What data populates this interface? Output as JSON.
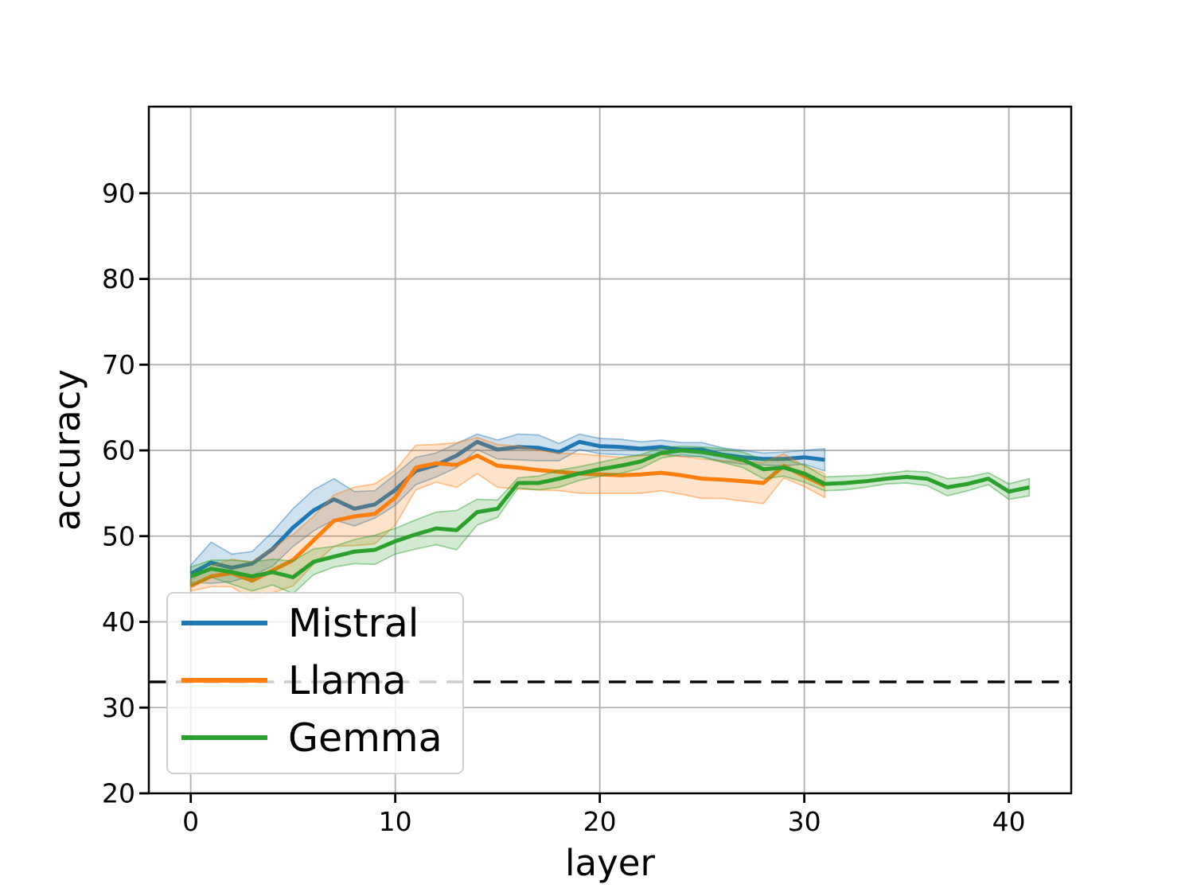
{
  "figure": {
    "background": "#ffffff"
  },
  "chart_data": {
    "type": "line",
    "title": "",
    "xlabel": "layer",
    "ylabel": "accuracy",
    "xlim": [
      -2.05,
      43.05
    ],
    "ylim": [
      20,
      100.1
    ],
    "xticks": [
      0,
      10,
      20,
      30,
      40
    ],
    "yticks": [
      20,
      30,
      40,
      50,
      60,
      70,
      80,
      90
    ],
    "grid": true,
    "grid_color": "#b0b0b0",
    "axis_color": "#000000",
    "baseline": {
      "y": 33,
      "color": "#000000",
      "style": "dashed"
    },
    "legend": {
      "position": "lower left",
      "frame_fill": "#ffffff",
      "frame_alpha": 0.8,
      "frame_border": "#cccccc",
      "entries": [
        "Mistral",
        "Llama",
        "Gemma"
      ]
    },
    "series": [
      {
        "name": "Mistral",
        "color": "#1f77b4",
        "layers": [
          0,
          1,
          2,
          3,
          4,
          5,
          6,
          7,
          8,
          9,
          10,
          11,
          12,
          13,
          14,
          15,
          16,
          17,
          18,
          19,
          20,
          21,
          22,
          23,
          24,
          25,
          26,
          27,
          28,
          29,
          30,
          31
        ],
        "accuracy": [
          45.6,
          46.9,
          46.3,
          46.8,
          48.5,
          51.0,
          53.0,
          54.3,
          53.2,
          53.7,
          55.4,
          57.6,
          58.3,
          59.4,
          61.0,
          60.1,
          60.4,
          60.3,
          59.8,
          61.0,
          60.5,
          60.4,
          60.2,
          60.4,
          60.1,
          60.1,
          59.5,
          59.2,
          59.0,
          59.0,
          59.2,
          58.9
        ],
        "band_halfwidth": [
          1.0,
          2.4,
          1.6,
          1.4,
          2.0,
          2.2,
          2.4,
          2.4,
          2.0,
          1.6,
          1.8,
          1.6,
          1.4,
          1.4,
          0.9,
          1.1,
          1.5,
          1.5,
          1.0,
          0.9,
          0.9,
          0.9,
          0.8,
          0.8,
          0.8,
          0.8,
          0.8,
          0.8,
          0.7,
          0.8,
          0.8,
          1.3
        ]
      },
      {
        "name": "Llama",
        "color": "#ff7f0e",
        "layers": [
          0,
          1,
          2,
          3,
          4,
          5,
          6,
          7,
          8,
          9,
          10,
          11,
          12,
          13,
          14,
          15,
          16,
          17,
          18,
          19,
          20,
          21,
          22,
          23,
          24,
          25,
          26,
          27,
          28,
          29,
          30,
          31
        ],
        "accuracy": [
          44.2,
          45.3,
          45.7,
          44.8,
          46.0,
          47.2,
          49.5,
          51.8,
          52.3,
          52.6,
          54.5,
          58.0,
          58.5,
          58.3,
          59.4,
          58.2,
          58.0,
          57.7,
          57.5,
          57.3,
          57.2,
          57.1,
          57.2,
          57.4,
          57.1,
          56.7,
          56.6,
          56.4,
          56.2,
          58.2,
          57.0,
          55.9
        ],
        "band_halfwidth": [
          0.6,
          1.2,
          1.6,
          2.2,
          2.6,
          3.0,
          2.8,
          3.0,
          3.4,
          3.5,
          3.2,
          2.6,
          2.2,
          2.6,
          2.1,
          2.5,
          2.5,
          2.3,
          2.2,
          2.3,
          2.2,
          2.1,
          2.2,
          2.1,
          2.2,
          2.3,
          2.2,
          2.3,
          2.4,
          1.4,
          1.2,
          1.4
        ]
      },
      {
        "name": "Gemma",
        "color": "#2ca02c",
        "layers": [
          0,
          1,
          2,
          3,
          4,
          5,
          6,
          7,
          8,
          9,
          10,
          11,
          12,
          13,
          14,
          15,
          16,
          17,
          18,
          19,
          20,
          21,
          22,
          23,
          24,
          25,
          26,
          27,
          28,
          29,
          30,
          31,
          32,
          33,
          34,
          35,
          36,
          37,
          38,
          39,
          40,
          41
        ],
        "accuracy": [
          45.3,
          46.2,
          45.8,
          45.3,
          45.8,
          45.2,
          47.0,
          47.6,
          48.2,
          48.4,
          49.4,
          50.2,
          50.9,
          50.7,
          52.8,
          53.2,
          56.2,
          56.2,
          56.7,
          57.3,
          57.8,
          58.2,
          58.7,
          59.7,
          60.0,
          59.8,
          59.4,
          58.9,
          57.8,
          58.0,
          57.3,
          56.1,
          56.2,
          56.4,
          56.7,
          56.9,
          56.7,
          55.7,
          56.1,
          56.7,
          55.2,
          55.7
        ],
        "band_halfwidth": [
          1.1,
          1.0,
          1.4,
          1.7,
          1.5,
          1.9,
          1.5,
          1.2,
          1.4,
          1.7,
          1.5,
          1.7,
          1.9,
          2.3,
          1.5,
          1.0,
          0.6,
          0.8,
          1.0,
          0.8,
          0.8,
          0.9,
          0.8,
          0.6,
          0.5,
          0.6,
          0.8,
          0.9,
          1.1,
          1.0,
          1.0,
          0.8,
          0.8,
          0.7,
          0.6,
          0.7,
          0.8,
          1.0,
          0.8,
          0.7,
          0.9,
          1.0
        ]
      }
    ]
  }
}
